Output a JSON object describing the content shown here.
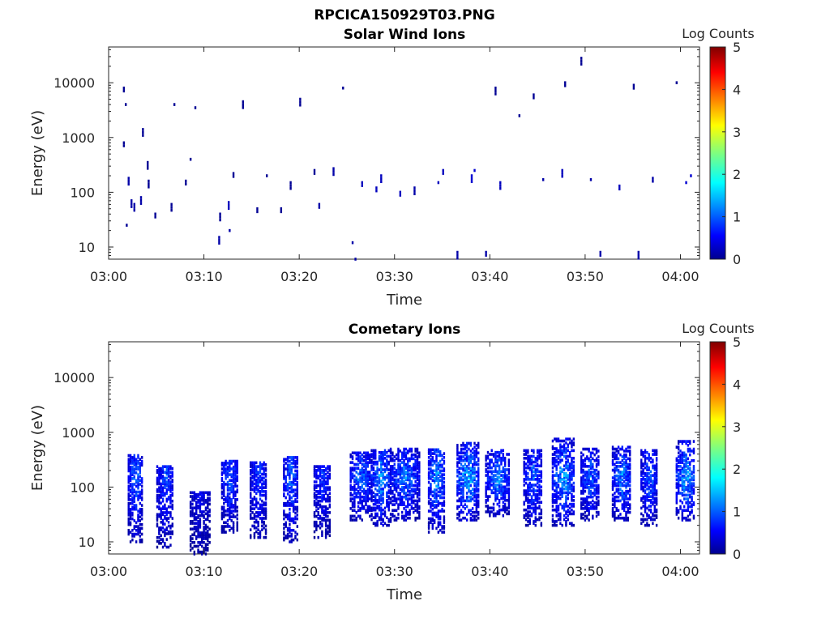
{
  "figure": {
    "title": "RPCICA150929T03.PNG"
  },
  "colorbar": {
    "title": "Log Counts",
    "ticks": [
      "0",
      "1",
      "2",
      "3",
      "4",
      "5"
    ],
    "range": [
      0,
      5
    ],
    "colormap": "jet"
  },
  "chart_data": [
    {
      "type": "heatmap",
      "title": "Solar Wind Ions",
      "xlabel": "Time",
      "ylabel": "Energy (eV)",
      "x_ticks": [
        "03:00",
        "03:10",
        "03:20",
        "03:30",
        "03:40",
        "03:50",
        "04:00"
      ],
      "x_range": [
        "03:00",
        "04:02"
      ],
      "y_ticks": [
        "10",
        "100",
        "1000",
        "10000"
      ],
      "y_range": [
        6,
        45000
      ],
      "y_scale": "log",
      "colorbar_range": [
        0,
        5
      ],
      "description_of_values": "sparse isolated pixels at log counts near 0-0.3 (dark blue) scattered from 10 eV to ~30000 eV, denser clusters at 100-300 eV",
      "cells": [
        {
          "t": "03:01.5",
          "e": 8000,
          "v": 0.1
        },
        {
          "t": "03:01.7",
          "e": 4000,
          "v": 0.1
        },
        {
          "t": "03:01.5",
          "e": 800,
          "v": 0.1
        },
        {
          "t": "03:02.0",
          "e": 180,
          "v": 0.2
        },
        {
          "t": "03:02.3",
          "e": 70,
          "v": 0.2
        },
        {
          "t": "03:02.6",
          "e": 60,
          "v": 0.2
        },
        {
          "t": "03:01.8",
          "e": 25,
          "v": 0.1
        },
        {
          "t": "03:03.3",
          "e": 80,
          "v": 0.2
        },
        {
          "t": "03:03.5",
          "e": 1400,
          "v": 0.1
        },
        {
          "t": "03:04.0",
          "e": 350,
          "v": 0.1
        },
        {
          "t": "03:04.1",
          "e": 160,
          "v": 0.1
        },
        {
          "t": "03:04.8",
          "e": 40,
          "v": 0.1
        },
        {
          "t": "03:06.5",
          "e": 60,
          "v": 0.1
        },
        {
          "t": "03:06.8",
          "e": 4000,
          "v": 0.1
        },
        {
          "t": "03:08.0",
          "e": 160,
          "v": 0.1
        },
        {
          "t": "03:08.5",
          "e": 400,
          "v": 0.1
        },
        {
          "t": "03:09.0",
          "e": 3500,
          "v": 0.1
        },
        {
          "t": "03:11.5",
          "e": 15,
          "v": 0.2
        },
        {
          "t": "03:11.6",
          "e": 40,
          "v": 0.1
        },
        {
          "t": "03:12.5",
          "e": 65,
          "v": 0.3
        },
        {
          "t": "03:12.6",
          "e": 20,
          "v": 0.2
        },
        {
          "t": "03:13.0",
          "e": 220,
          "v": 0.1
        },
        {
          "t": "03:14.0",
          "e": 4500,
          "v": 0.1
        },
        {
          "t": "03:15.5",
          "e": 50,
          "v": 0.1
        },
        {
          "t": "03:16.5",
          "e": 200,
          "v": 0.1
        },
        {
          "t": "03:18.0",
          "e": 50,
          "v": 0.1
        },
        {
          "t": "03:19.0",
          "e": 150,
          "v": 0.1
        },
        {
          "t": "03:20.0",
          "e": 5000,
          "v": 0.1
        },
        {
          "t": "03:21.5",
          "e": 250,
          "v": 0.1
        },
        {
          "t": "03:22.0",
          "e": 60,
          "v": 0.2
        },
        {
          "t": "03:23.5",
          "e": 270,
          "v": 0.2
        },
        {
          "t": "03:24.5",
          "e": 8000,
          "v": 0.1
        },
        {
          "t": "03:25.5",
          "e": 12,
          "v": 0.2
        },
        {
          "t": "03:25.8",
          "e": 6,
          "v": 0.2
        },
        {
          "t": "03:26.5",
          "e": 150,
          "v": 0.3
        },
        {
          "t": "03:28.0",
          "e": 120,
          "v": 0.3
        },
        {
          "t": "03:28.5",
          "e": 200,
          "v": 0.3
        },
        {
          "t": "03:30.5",
          "e": 100,
          "v": 0.3
        },
        {
          "t": "03:32.0",
          "e": 120,
          "v": 0.2
        },
        {
          "t": "03:34.5",
          "e": 150,
          "v": 0.3
        },
        {
          "t": "03:35.0",
          "e": 250,
          "v": 0.3
        },
        {
          "t": "03:36.5",
          "e": 8,
          "v": 0.2
        },
        {
          "t": "03:38.0",
          "e": 200,
          "v": 0.4
        },
        {
          "t": "03:38.3",
          "e": 250,
          "v": 0.4
        },
        {
          "t": "03:39.5",
          "e": 8,
          "v": 0.2
        },
        {
          "t": "03:40.5",
          "e": 8000,
          "v": 0.1
        },
        {
          "t": "03:41.0",
          "e": 150,
          "v": 0.3
        },
        {
          "t": "03:43.0",
          "e": 2500,
          "v": 0.1
        },
        {
          "t": "03:44.5",
          "e": 6000,
          "v": 0.1
        },
        {
          "t": "03:45.5",
          "e": 170,
          "v": 0.2
        },
        {
          "t": "03:47.5",
          "e": 250,
          "v": 0.3
        },
        {
          "t": "03:47.8",
          "e": 10000,
          "v": 0.1
        },
        {
          "t": "03:49.5",
          "e": 28000,
          "v": 0.1
        },
        {
          "t": "03:50.5",
          "e": 170,
          "v": 0.2
        },
        {
          "t": "03:51.5",
          "e": 8,
          "v": 0.2
        },
        {
          "t": "03:53.5",
          "e": 130,
          "v": 0.3
        },
        {
          "t": "03:55.0",
          "e": 9000,
          "v": 0.1
        },
        {
          "t": "03:55.5",
          "e": 8,
          "v": 0.2
        },
        {
          "t": "03:57.0",
          "e": 180,
          "v": 0.2
        },
        {
          "t": "03:59.5",
          "e": 10000,
          "v": 0.1
        },
        {
          "t": "04:00.5",
          "e": 150,
          "v": 0.4
        },
        {
          "t": "04:01.0",
          "e": 200,
          "v": 0.4
        }
      ]
    },
    {
      "type": "heatmap",
      "title": "Cometary Ions",
      "xlabel": "Time",
      "ylabel": "Energy (eV)",
      "x_ticks": [
        "03:00",
        "03:10",
        "03:20",
        "03:30",
        "03:40",
        "03:50",
        "04:00"
      ],
      "x_range": [
        "03:00",
        "04:02"
      ],
      "y_ticks": [
        "10",
        "100",
        "1000",
        "10000"
      ],
      "y_range": [
        6,
        45000
      ],
      "y_scale": "log",
      "colorbar_range": [
        0,
        5
      ],
      "description_of_values": "periodic vertical bursts roughly every 3-4 minutes spanning ~10-500 eV, peak log counts ~1.5 near 100-200 eV",
      "bursts": [
        {
          "t_start": "03:02.0",
          "t_end": "03:03.5",
          "e_min": 10,
          "e_max": 400,
          "peak": 1.3
        },
        {
          "t_start": "03:05.0",
          "t_end": "03:06.8",
          "e_min": 8,
          "e_max": 250,
          "peak": 1.1
        },
        {
          "t_start": "03:08.5",
          "t_end": "03:10.5",
          "e_min": 6,
          "e_max": 80,
          "peak": 0.8
        },
        {
          "t_start": "03:11.8",
          "t_end": "03:13.5",
          "e_min": 15,
          "e_max": 300,
          "peak": 1.2
        },
        {
          "t_start": "03:14.8",
          "t_end": "03:16.5",
          "e_min": 12,
          "e_max": 300,
          "peak": 1.1
        },
        {
          "t_start": "03:18.3",
          "t_end": "03:19.8",
          "e_min": 10,
          "e_max": 350,
          "peak": 1.3
        },
        {
          "t_start": "03:21.5",
          "t_end": "03:23.2",
          "e_min": 12,
          "e_max": 250,
          "peak": 1.0
        },
        {
          "t_start": "03:25.3",
          "t_end": "03:27.5",
          "e_min": 25,
          "e_max": 450,
          "peak": 1.4
        },
        {
          "t_start": "03:27.5",
          "t_end": "03:29.5",
          "e_min": 20,
          "e_max": 500,
          "peak": 1.6
        },
        {
          "t_start": "03:29.5",
          "t_end": "03:32.5",
          "e_min": 25,
          "e_max": 500,
          "peak": 1.4
        },
        {
          "t_start": "03:33.5",
          "t_end": "03:35.2",
          "e_min": 15,
          "e_max": 500,
          "peak": 1.6
        },
        {
          "t_start": "03:36.5",
          "t_end": "03:38.8",
          "e_min": 25,
          "e_max": 650,
          "peak": 1.8
        },
        {
          "t_start": "03:39.5",
          "t_end": "03:42.0",
          "e_min": 30,
          "e_max": 500,
          "peak": 1.5
        },
        {
          "t_start": "03:43.5",
          "t_end": "03:45.5",
          "e_min": 20,
          "e_max": 500,
          "peak": 1.3
        },
        {
          "t_start": "03:46.5",
          "t_end": "03:48.8",
          "e_min": 20,
          "e_max": 800,
          "peak": 1.6
        },
        {
          "t_start": "03:49.5",
          "t_end": "03:51.5",
          "e_min": 25,
          "e_max": 500,
          "peak": 1.3
        },
        {
          "t_start": "03:52.8",
          "t_end": "03:54.8",
          "e_min": 25,
          "e_max": 550,
          "peak": 1.5
        },
        {
          "t_start": "03:55.8",
          "t_end": "03:57.5",
          "e_min": 20,
          "e_max": 500,
          "peak": 1.3
        },
        {
          "t_start": "03:59.5",
          "t_end": "04:01.5",
          "e_min": 25,
          "e_max": 700,
          "peak": 1.7
        }
      ]
    }
  ]
}
